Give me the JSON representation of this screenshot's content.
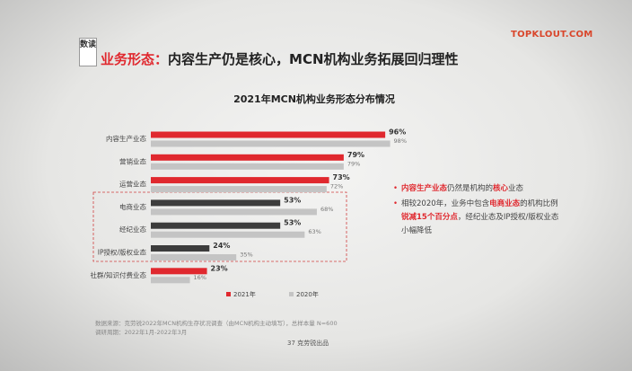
{
  "header": {
    "badge": "数读",
    "title_lead": "业务形态：",
    "title": "内容生产仍是核心，MCN机构业务拓展回归理性",
    "logo": "TOPKLOUT.COM"
  },
  "chart_data": {
    "type": "bar",
    "orientation": "horizontal",
    "title": "2021年MCN机构业务形态分布情况",
    "categories": [
      "内容生产业态",
      "营销业态",
      "运营业态",
      "电商业态",
      "经纪业态",
      "IP授权/版权业态",
      "社群/知识付费业态"
    ],
    "series": [
      {
        "name": "2021年",
        "color": "#e0282e",
        "colors": [
          "#e0282e",
          "#e0282e",
          "#e0282e",
          "#3c3c3c",
          "#3c3c3c",
          "#3c3c3c",
          "#e0282e"
        ],
        "values": [
          96,
          79,
          73,
          53,
          53,
          24,
          23
        ],
        "value_labels": [
          "96%",
          "79%",
          "73%",
          "53%",
          "53%",
          "24%",
          "23%"
        ]
      },
      {
        "name": "2020年",
        "color": "#c4c4c4",
        "values": [
          98,
          79,
          72,
          68,
          63,
          35,
          16
        ],
        "value_labels": [
          "98%",
          "79%",
          "72%",
          "68%",
          "63%",
          "35%",
          "16%"
        ]
      }
    ],
    "legend": "bottom"
  },
  "annotations": [
    [
      {
        "text": "内容生产业态",
        "em": true
      },
      {
        "text": "仍然是机构的",
        "em": false
      },
      {
        "text": "核心",
        "em": true
      },
      {
        "text": "业态",
        "em": false
      }
    ],
    [
      {
        "text": "相较2020年，业务中包含",
        "em": false
      },
      {
        "text": "电商业态",
        "em": true
      },
      {
        "text": "的机构比例",
        "em": false
      },
      {
        "text": "锐减15个百分点",
        "em": true
      },
      {
        "text": "，经纪业态及IP授权/版权业态小幅降低",
        "em": false
      }
    ]
  ],
  "footer": {
    "source": "数据来源：克劳锐2022年MCN机构生存状况调查（由MCN机构主动填写），总样本量 N=600",
    "period": "调研周期：2022年1月-2022年3月",
    "page": "37",
    "brand": "克劳锐出品"
  }
}
